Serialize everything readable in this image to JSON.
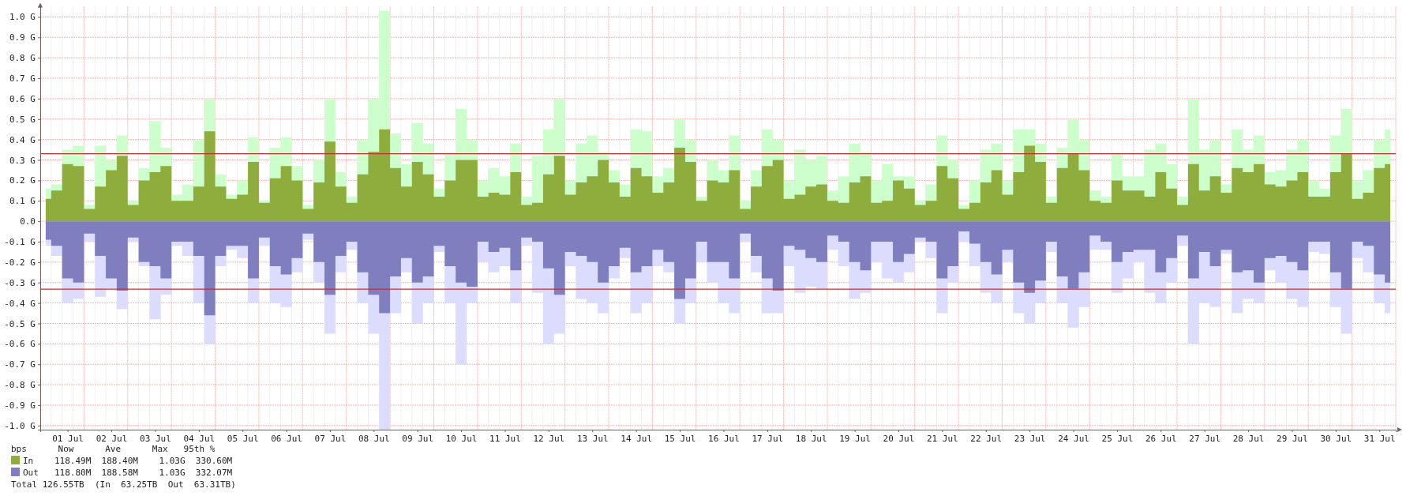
{
  "chart_data": {
    "type": "area",
    "categories": [
      null,
      null,
      "01 Jul",
      null,
      null,
      null,
      "02 Jul",
      null,
      null,
      null,
      "03 Jul",
      null,
      null,
      null,
      "04 Jul",
      null,
      null,
      null,
      "05 Jul",
      null,
      null,
      null,
      "06 Jul",
      null,
      null,
      null,
      "07 Jul",
      null,
      null,
      null,
      "08 Jul",
      null,
      null,
      null,
      "09 Jul",
      null,
      null,
      null,
      "10 Jul",
      null,
      null,
      null,
      "11 Jul",
      null,
      null,
      null,
      "12 Jul",
      null,
      null,
      null,
      "13 Jul",
      null,
      null,
      null,
      "14 Jul",
      null,
      null,
      null,
      "15 Jul",
      null,
      null,
      null,
      "16 Jul",
      null,
      null,
      null,
      "17 Jul",
      null,
      null,
      null,
      "18 Jul",
      null,
      null,
      null,
      "19 Jul",
      null,
      null,
      null,
      "20 Jul",
      null,
      null,
      null,
      "21 Jul",
      null,
      null,
      null,
      "22 Jul",
      null,
      null,
      null,
      "23 Jul",
      null,
      null,
      null,
      "24 Jul",
      null,
      null,
      null,
      "25 Jul",
      null,
      null,
      null,
      "26 Jul",
      null,
      null,
      null,
      "27 Jul",
      null,
      null,
      null,
      "28 Jul",
      null,
      null,
      null,
      "29 Jul",
      null,
      null,
      null,
      "30 Jul",
      null,
      null,
      null,
      "31 Jul",
      null
    ],
    "series": [
      {
        "color": "#ccffcc",
        "values": [
          0.16,
          0.18,
          0.35,
          0.37,
          0.08,
          0.37,
          0.3,
          0.42,
          0.1,
          0.26,
          0.49,
          0.36,
          0.13,
          0.18,
          0.4,
          0.6,
          0.23,
          0.13,
          0.2,
          0.41,
          0.1,
          0.36,
          0.41,
          0.27,
          0.08,
          0.3,
          0.6,
          0.24,
          0.12,
          0.4,
          0.6,
          1.03,
          0.43,
          0.28,
          0.48,
          0.38,
          0.16,
          0.33,
          0.55,
          0.4,
          0.2,
          0.26,
          0.22,
          0.38,
          0.12,
          0.32,
          0.45,
          0.6,
          0.2,
          0.38,
          0.42,
          0.34,
          0.25,
          0.18,
          0.45,
          0.44,
          0.22,
          0.26,
          0.5,
          0.4,
          0.12,
          0.3,
          0.25,
          0.42,
          0.1,
          0.25,
          0.45,
          0.4,
          0.2,
          0.35,
          0.3,
          0.32,
          0.15,
          0.22,
          0.38,
          0.34,
          0.2,
          0.28,
          0.22,
          0.22,
          0.1,
          0.18,
          0.42,
          0.3,
          0.08,
          0.2,
          0.35,
          0.38,
          0.2,
          0.45,
          0.45,
          0.38,
          0.12,
          0.36,
          0.5,
          0.4,
          0.15,
          0.12,
          0.33,
          0.22,
          0.22,
          0.35,
          0.38,
          0.28,
          0.12,
          0.6,
          0.35,
          0.4,
          0.18,
          0.45,
          0.35,
          0.42,
          0.24,
          0.25,
          0.35,
          0.4,
          0.2,
          0.16,
          0.42,
          0.55,
          0.2,
          0.25,
          0.4,
          0.45
        ]
      },
      {
        "color": "#dcdcff",
        "values": [
          -0.12,
          -0.17,
          -0.4,
          -0.38,
          -0.1,
          -0.37,
          -0.33,
          -0.43,
          -0.1,
          -0.22,
          -0.48,
          -0.36,
          -0.12,
          -0.17,
          -0.4,
          -0.6,
          -0.22,
          -0.14,
          -0.18,
          -0.4,
          -0.12,
          -0.4,
          -0.42,
          -0.25,
          -0.09,
          -0.3,
          -0.55,
          -0.25,
          -0.14,
          -0.4,
          -0.55,
          -1.02,
          -0.45,
          -0.25,
          -0.5,
          -0.4,
          -0.15,
          -0.4,
          -0.7,
          -0.4,
          -0.2,
          -0.25,
          -0.22,
          -0.4,
          -0.12,
          -0.35,
          -0.6,
          -0.55,
          -0.22,
          -0.38,
          -0.4,
          -0.45,
          -0.28,
          -0.18,
          -0.45,
          -0.4,
          -0.22,
          -0.25,
          -0.5,
          -0.4,
          -0.2,
          -0.3,
          -0.4,
          -0.45,
          -0.1,
          -0.25,
          -0.45,
          -0.45,
          -0.22,
          -0.35,
          -0.32,
          -0.33,
          -0.14,
          -0.22,
          -0.38,
          -0.35,
          -0.2,
          -0.28,
          -0.3,
          -0.25,
          -0.1,
          -0.18,
          -0.45,
          -0.3,
          -0.1,
          -0.22,
          -0.35,
          -0.4,
          -0.2,
          -0.45,
          -0.5,
          -0.4,
          -0.15,
          -0.4,
          -0.52,
          -0.42,
          -0.14,
          -0.14,
          -0.35,
          -0.28,
          -0.2,
          -0.35,
          -0.4,
          -0.3,
          -0.12,
          -0.6,
          -0.4,
          -0.42,
          -0.16,
          -0.45,
          -0.38,
          -0.4,
          -0.24,
          -0.3,
          -0.38,
          -0.42,
          -0.15,
          -0.16,
          -0.42,
          -0.55,
          -0.18,
          -0.25,
          -0.4,
          -0.45
        ]
      },
      {
        "name": "In",
        "color": "#8fad3c",
        "values": [
          0.11,
          0.15,
          0.28,
          0.27,
          0.06,
          0.17,
          0.25,
          0.32,
          0.08,
          0.2,
          0.24,
          0.27,
          0.1,
          0.1,
          0.17,
          0.44,
          0.17,
          0.11,
          0.13,
          0.29,
          0.09,
          0.21,
          0.27,
          0.2,
          0.06,
          0.19,
          0.39,
          0.17,
          0.09,
          0.23,
          0.34,
          0.45,
          0.26,
          0.17,
          0.29,
          0.23,
          0.12,
          0.2,
          0.3,
          0.3,
          0.12,
          0.14,
          0.13,
          0.24,
          0.08,
          0.09,
          0.23,
          0.32,
          0.13,
          0.19,
          0.22,
          0.3,
          0.19,
          0.12,
          0.26,
          0.22,
          0.14,
          0.19,
          0.36,
          0.29,
          0.1,
          0.2,
          0.19,
          0.25,
          0.06,
          0.17,
          0.27,
          0.3,
          0.11,
          0.13,
          0.17,
          0.18,
          0.1,
          0.09,
          0.19,
          0.22,
          0.09,
          0.1,
          0.2,
          0.16,
          0.08,
          0.1,
          0.27,
          0.21,
          0.06,
          0.09,
          0.19,
          0.25,
          0.13,
          0.24,
          0.37,
          0.29,
          0.09,
          0.26,
          0.33,
          0.25,
          0.1,
          0.09,
          0.2,
          0.15,
          0.15,
          0.12,
          0.24,
          0.16,
          0.08,
          0.28,
          0.15,
          0.22,
          0.14,
          0.26,
          0.24,
          0.28,
          0.18,
          0.17,
          0.2,
          0.24,
          0.12,
          0.12,
          0.24,
          0.33,
          0.11,
          0.14,
          0.26,
          0.28
        ]
      },
      {
        "name": "Out",
        "color": "#7f7fc0",
        "values": [
          -0.09,
          -0.12,
          -0.28,
          -0.3,
          -0.06,
          -0.17,
          -0.28,
          -0.34,
          -0.08,
          -0.2,
          -0.22,
          -0.28,
          -0.1,
          -0.1,
          -0.17,
          -0.46,
          -0.17,
          -0.12,
          -0.12,
          -0.28,
          -0.08,
          -0.22,
          -0.26,
          -0.18,
          -0.06,
          -0.2,
          -0.36,
          -0.17,
          -0.1,
          -0.25,
          -0.36,
          -0.45,
          -0.27,
          -0.18,
          -0.3,
          -0.27,
          -0.12,
          -0.22,
          -0.3,
          -0.32,
          -0.1,
          -0.15,
          -0.13,
          -0.24,
          -0.08,
          -0.1,
          -0.23,
          -0.36,
          -0.15,
          -0.17,
          -0.2,
          -0.3,
          -0.22,
          -0.13,
          -0.25,
          -0.22,
          -0.14,
          -0.2,
          -0.38,
          -0.28,
          -0.1,
          -0.2,
          -0.2,
          -0.28,
          -0.06,
          -0.17,
          -0.28,
          -0.34,
          -0.12,
          -0.14,
          -0.18,
          -0.2,
          -0.07,
          -0.1,
          -0.2,
          -0.24,
          -0.1,
          -0.1,
          -0.2,
          -0.16,
          -0.08,
          -0.1,
          -0.28,
          -0.22,
          -0.05,
          -0.11,
          -0.2,
          -0.26,
          -0.14,
          -0.3,
          -0.35,
          -0.29,
          -0.1,
          -0.27,
          -0.33,
          -0.25,
          -0.07,
          -0.1,
          -0.2,
          -0.15,
          -0.14,
          -0.14,
          -0.25,
          -0.18,
          -0.07,
          -0.28,
          -0.15,
          -0.22,
          -0.14,
          -0.25,
          -0.24,
          -0.3,
          -0.18,
          -0.17,
          -0.2,
          -0.24,
          -0.1,
          -0.1,
          -0.25,
          -0.33,
          -0.1,
          -0.12,
          -0.26,
          -0.3
        ]
      }
    ],
    "ylim": [
      -1.02,
      1.05
    ],
    "yticks": [
      {
        "value": -1,
        "label": "-1.0 G"
      },
      {
        "value": -0.9,
        "label": "-0.9 G"
      },
      {
        "value": -0.8,
        "label": "-0.8 G"
      },
      {
        "value": -0.7,
        "label": "-0.7 G"
      },
      {
        "value": -0.6,
        "label": "-0.6 G"
      },
      {
        "value": -0.5,
        "label": "-0.5 G"
      },
      {
        "value": -0.4,
        "label": "-0.4 G"
      },
      {
        "value": -0.3,
        "label": "-0.3 G"
      },
      {
        "value": -0.2,
        "label": "-0.2 G"
      },
      {
        "value": -0.1,
        "label": "-0.1 G"
      },
      {
        "value": 0,
        "label": "0.0"
      },
      {
        "value": 0.1,
        "label": "0.1 G"
      },
      {
        "value": 0.2,
        "label": "0.2 G"
      },
      {
        "value": 0.3,
        "label": "0.3 G"
      },
      {
        "value": 0.4,
        "label": "0.4 G"
      },
      {
        "value": 0.5,
        "label": "0.5 G"
      },
      {
        "value": 0.6,
        "label": "0.6 G"
      },
      {
        "value": 0.7,
        "label": "0.7 G"
      },
      {
        "value": 0.8,
        "label": "0.8 G"
      },
      {
        "value": 0.9,
        "label": "0.9 G"
      },
      {
        "value": 1,
        "label": "1.0 G"
      }
    ],
    "ref_lines": [
      {
        "axis": "y",
        "value": 0.3306,
        "color": "#c03030"
      },
      {
        "axis": "y",
        "value": -0.33207,
        "color": "#c03030"
      }
    ],
    "grid": true,
    "legend": "bottom left",
    "annotations": [
      "bps      Now      Ave      Max   95th %",
      "118.49M  188.40M    1.03G  330.60M",
      "118.80M  188.58M    1.03G  332.07M",
      "Total 126.55TB  (In  63.25TB  Out  63.31TB)"
    ]
  }
}
